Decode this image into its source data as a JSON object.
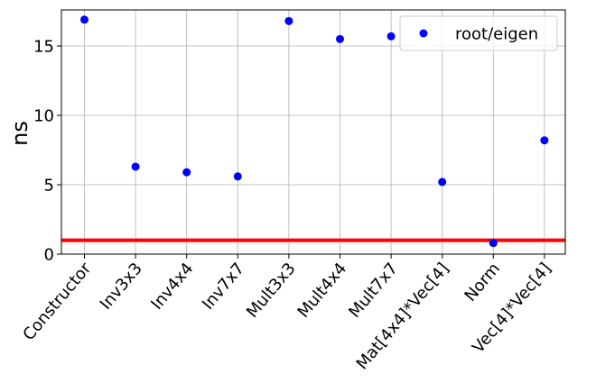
{
  "chart_data": {
    "type": "scatter",
    "title": "",
    "xlabel": "",
    "ylabel": "ns",
    "ylim": [
      0,
      17.6
    ],
    "yticks": [
      0,
      5,
      10,
      15
    ],
    "grid": true,
    "legend_position": "top-right",
    "categories": [
      "Constructor",
      "Inv3x3",
      "Inv4x4",
      "Inv7x7",
      "Mult3x3",
      "Mult4x4",
      "Mult7x7",
      "Mat[4x4]*Vec[4]",
      "Norm",
      "Vec[4]*Vec[4]"
    ],
    "series": [
      {
        "name": "root/eigen",
        "color": "#0000ff",
        "values": [
          16.9,
          6.3,
          5.9,
          5.6,
          16.8,
          15.5,
          15.7,
          5.2,
          0.8,
          8.2
        ]
      }
    ],
    "reference_line": {
      "y": 1.0,
      "color": "#ff0000"
    }
  }
}
